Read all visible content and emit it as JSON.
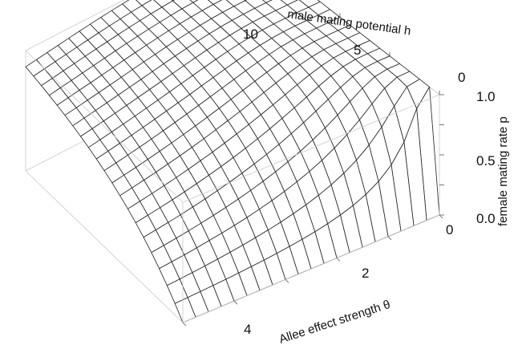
{
  "chart_data": {
    "type": "surface3d",
    "x_axis": {
      "label": "male mating potential h",
      "range": [
        0,
        10
      ],
      "ticks": [
        "0",
        "5",
        "10"
      ]
    },
    "y_axis": {
      "label": "Allee effect strength θ",
      "range": [
        0,
        5
      ],
      "ticks": [
        "0",
        "2",
        "4"
      ]
    },
    "z_axis": {
      "label": "female mating rate p",
      "range": [
        0,
        1
      ],
      "ticks": [
        "0.0",
        "0.5",
        "1.0"
      ]
    },
    "surface": "p = 1 - exp(-h/θ)",
    "grid": {
      "h_lines": 21,
      "theta_lines": 21
    },
    "mesh_color": "#2a2a2a",
    "fill_color": "#ffffff"
  }
}
